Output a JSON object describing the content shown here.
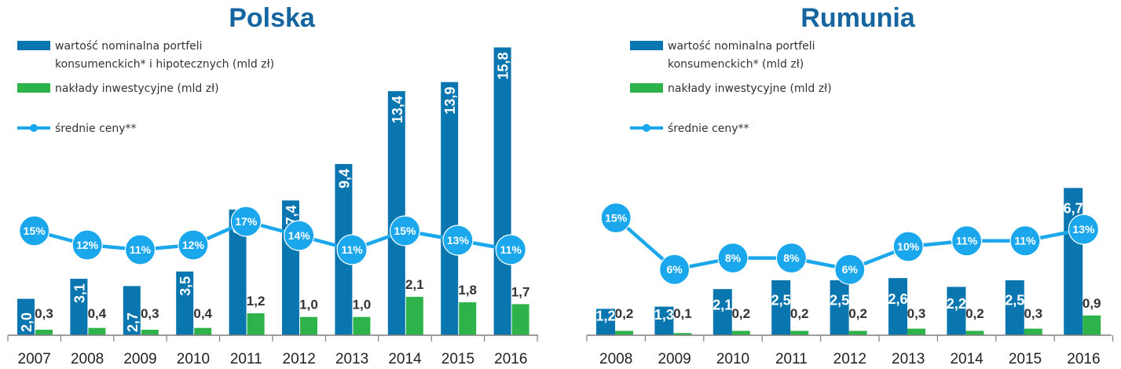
{
  "colors": {
    "blue_bar": "#0a76b0",
    "green_bar": "#2db34a",
    "line": "#1aa7ec",
    "title": "#1565a0"
  },
  "chart_data": [
    {
      "type": "bar",
      "title": "Polska",
      "legend": [
        {
          "label_line1": "wartość nominalna portfeli",
          "label_line2": "konsumenckich* i hipotecznych (mld zł)"
        },
        {
          "label_line1": "nakłady inwestycyjne (mld zł)",
          "label_line2": ""
        },
        {
          "label_line1": "średnie ceny**",
          "label_line2": ""
        }
      ],
      "categories": [
        "2007",
        "2008",
        "2009",
        "2010",
        "2011",
        "2012",
        "2013",
        "2014",
        "2015",
        "2016"
      ],
      "series": [
        {
          "name": "wartość nominalna portfeli konsumenckich* i hipotecznych (mld zł)",
          "values": [
            2.0,
            3.1,
            2.7,
            3.5,
            6.9,
            7.4,
            9.4,
            13.4,
            13.9,
            15.8
          ],
          "labels": [
            "2,0",
            "3,1",
            "2,7",
            "3,5",
            "6,9",
            "7,4",
            "9,4",
            "13,4",
            "13,9",
            "15,8"
          ]
        },
        {
          "name": "nakłady inwestycyjne (mld zł)",
          "values": [
            0.3,
            0.4,
            0.3,
            0.4,
            1.2,
            1.0,
            1.0,
            2.1,
            1.8,
            1.7
          ],
          "labels": [
            "0,3",
            "0,4",
            "0,3",
            "0,4",
            "1,2",
            "1,0",
            "1,0",
            "2,1",
            "1,8",
            "1,7"
          ]
        },
        {
          "name": "średnie ceny**",
          "values": [
            15,
            12,
            11,
            12,
            17,
            14,
            11,
            15,
            13,
            11
          ],
          "labels": [
            "15%",
            "12%",
            "11%",
            "12%",
            "17%",
            "14%",
            "11%",
            "15%",
            "13%",
            "11%"
          ]
        }
      ]
    },
    {
      "type": "bar",
      "title": "Rumunia",
      "legend": [
        {
          "label_line1": "wartość nominalna portfeli",
          "label_line2": "konsumenckich* (mld zł)"
        },
        {
          "label_line1": "nakłady inwestycyjne (mld zł)",
          "label_line2": ""
        },
        {
          "label_line1": "średnie ceny**",
          "label_line2": ""
        }
      ],
      "categories": [
        "2008",
        "2009",
        "2010",
        "2011",
        "2012",
        "2013",
        "2014",
        "2015",
        "2016"
      ],
      "series": [
        {
          "name": "wartość nominalna portfeli konsumenckich* (mld zł)",
          "values": [
            1.2,
            1.3,
            2.1,
            2.5,
            2.5,
            2.6,
            2.2,
            2.5,
            6.7
          ],
          "labels": [
            "1,2",
            "1,3",
            "2,1",
            "2,5",
            "2,5",
            "2,6",
            "2,2",
            "2,5",
            "6,7"
          ]
        },
        {
          "name": "nakłady inwestycyjne (mld zł)",
          "values": [
            0.2,
            0.1,
            0.2,
            0.2,
            0.2,
            0.3,
            0.2,
            0.3,
            0.9
          ],
          "labels": [
            "0,2",
            "0,1",
            "0,2",
            "0,2",
            "0,2",
            "0,3",
            "0,2",
            "0,3",
            "0,9"
          ]
        },
        {
          "name": "średnie ceny**",
          "values": [
            15,
            6,
            8,
            8,
            6,
            10,
            11,
            11,
            13
          ],
          "labels": [
            "15%",
            "6%",
            "8%",
            "8%",
            "6%",
            "10%",
            "11%",
            "11%",
            "13%"
          ]
        }
      ]
    }
  ]
}
